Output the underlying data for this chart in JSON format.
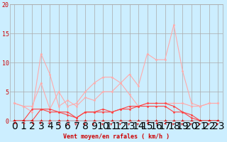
{
  "background_color": "#cceeff",
  "grid_color": "#aaaaaa",
  "xlabel": "Vent moyen/en rafales ( km/h )",
  "xlim": [
    -0.5,
    23.5
  ],
  "ylim": [
    0,
    20
  ],
  "yticks": [
    0,
    5,
    10,
    15,
    20
  ],
  "xticks": [
    0,
    1,
    2,
    3,
    4,
    5,
    6,
    7,
    8,
    9,
    10,
    11,
    12,
    13,
    14,
    15,
    16,
    17,
    18,
    19,
    20,
    21,
    22,
    23
  ],
  "x": [
    0,
    1,
    2,
    3,
    4,
    5,
    6,
    7,
    8,
    9,
    10,
    11,
    12,
    13,
    14,
    15,
    16,
    17,
    18,
    19,
    20,
    21,
    22,
    23
  ],
  "line_gust_hi": [
    3.0,
    2.5,
    2.5,
    6.5,
    2.0,
    5.0,
    2.5,
    3.0,
    5.0,
    6.5,
    7.5,
    7.5,
    6.5,
    8.0,
    6.0,
    11.5,
    10.5,
    10.5,
    16.5,
    8.5,
    3.0,
    2.5,
    3.0,
    3.0
  ],
  "line_gust_lo": [
    3.0,
    2.5,
    1.5,
    11.5,
    8.0,
    2.5,
    3.5,
    2.5,
    4.0,
    3.5,
    5.0,
    5.0,
    6.5,
    4.5,
    2.5,
    3.0,
    3.0,
    3.0,
    3.0,
    3.0,
    2.5,
    2.5,
    3.0,
    3.0
  ],
  "line_mean_hi": [
    0.0,
    0.0,
    2.0,
    2.0,
    2.0,
    1.5,
    1.5,
    0.5,
    1.5,
    1.5,
    2.0,
    1.5,
    2.0,
    2.5,
    2.5,
    3.0,
    3.0,
    3.0,
    2.5,
    1.5,
    1.0,
    0.0,
    0.0,
    0.0
  ],
  "line_mean_lo": [
    0.0,
    0.0,
    0.0,
    2.0,
    1.5,
    1.5,
    1.0,
    0.5,
    1.5,
    1.5,
    1.5,
    1.5,
    2.0,
    2.0,
    2.5,
    2.5,
    2.5,
    2.5,
    1.5,
    1.5,
    0.5,
    0.0,
    0.0,
    0.0
  ],
  "line_zero": [
    0.0,
    0.0,
    0.0,
    0.0,
    0.0,
    0.0,
    0.0,
    0.0,
    0.0,
    0.0,
    0.0,
    0.0,
    0.0,
    0.0,
    0.0,
    0.0,
    0.0,
    0.0,
    0.0,
    0.0,
    0.0,
    0.0,
    0.0,
    0.0
  ],
  "color_light": "#ffaaaa",
  "color_medium": "#ff4444",
  "color_dark": "#cc0000",
  "arrow_angles": [
    225,
    225,
    225,
    135,
    135,
    315,
    315,
    45,
    45,
    45,
    45,
    45,
    45,
    45,
    45,
    225,
    225,
    270,
    45,
    45,
    45,
    45,
    45,
    45
  ]
}
